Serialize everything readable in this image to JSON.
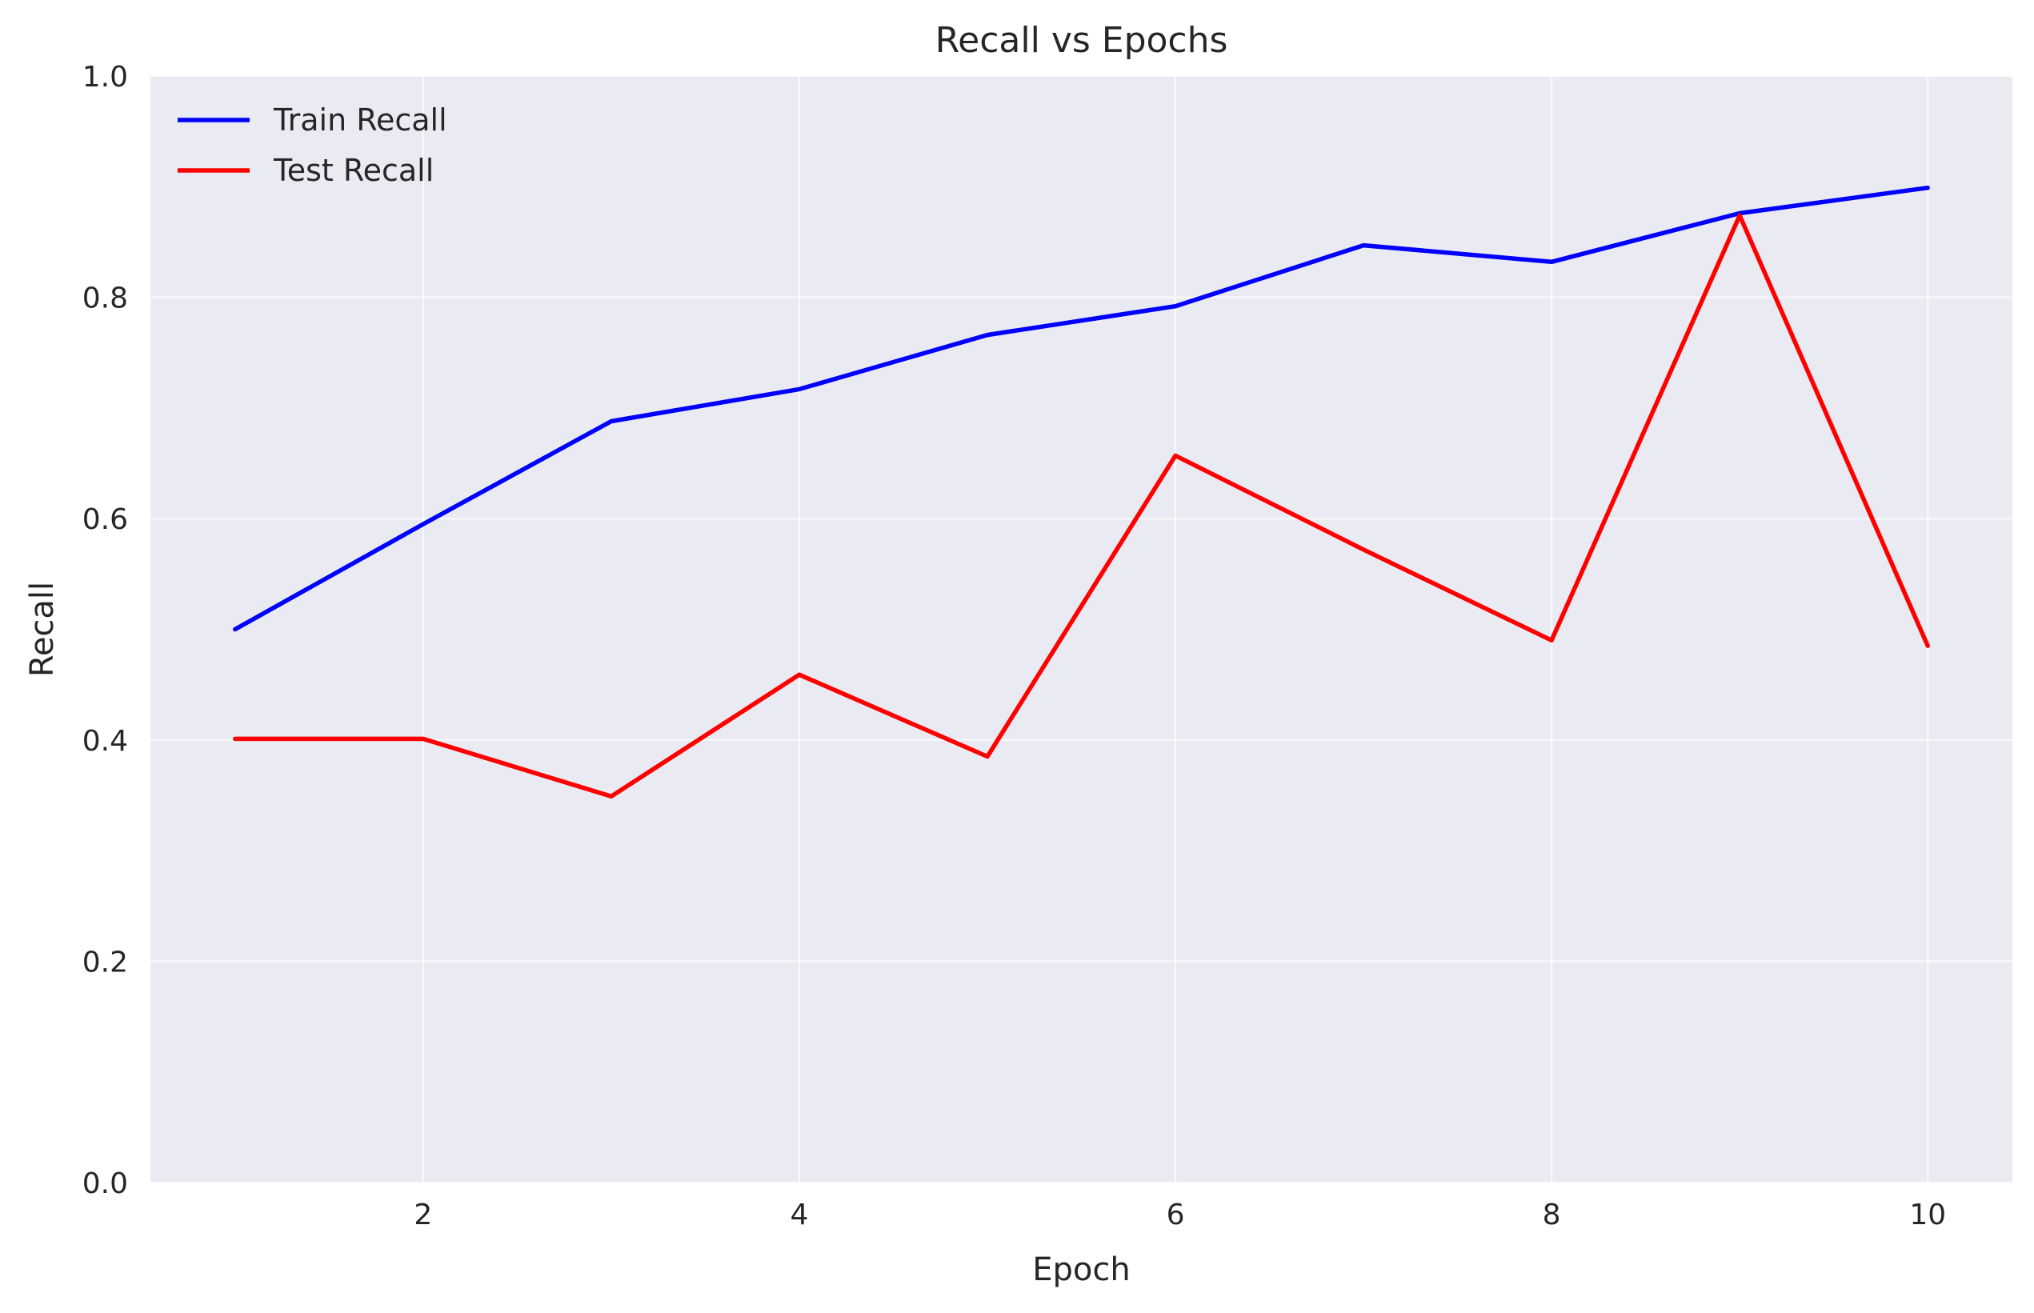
{
  "chart_data": {
    "type": "line",
    "title": "Recall vs Epochs",
    "xlabel": "Epoch",
    "ylabel": "Recall",
    "x": [
      1,
      2,
      3,
      4,
      5,
      6,
      7,
      8,
      9,
      10
    ],
    "xlim": [
      0.55,
      10.45
    ],
    "ylim": [
      0,
      1.0
    ],
    "xticks": [
      2,
      4,
      6,
      8,
      10
    ],
    "yticks": [
      0.0,
      0.2,
      0.4,
      0.6,
      0.8,
      1.0
    ],
    "xtick_labels": [
      "2",
      "4",
      "6",
      "8",
      "10"
    ],
    "ytick_labels": [
      "0.0",
      "0.2",
      "0.4",
      "0.6",
      "0.8",
      "1.0"
    ],
    "grid": true,
    "legend_position": "top-left",
    "background": "#eaeaf2",
    "series": [
      {
        "name": "Train Recall",
        "color": "#0000ff",
        "values": [
          0.5,
          0.595,
          0.688,
          0.717,
          0.766,
          0.792,
          0.847,
          0.832,
          0.876,
          0.899
        ]
      },
      {
        "name": "Test Recall",
        "color": "#ff0000",
        "values": [
          0.401,
          0.401,
          0.349,
          0.459,
          0.385,
          0.657,
          0.572,
          0.49,
          0.874,
          0.485
        ]
      }
    ]
  }
}
